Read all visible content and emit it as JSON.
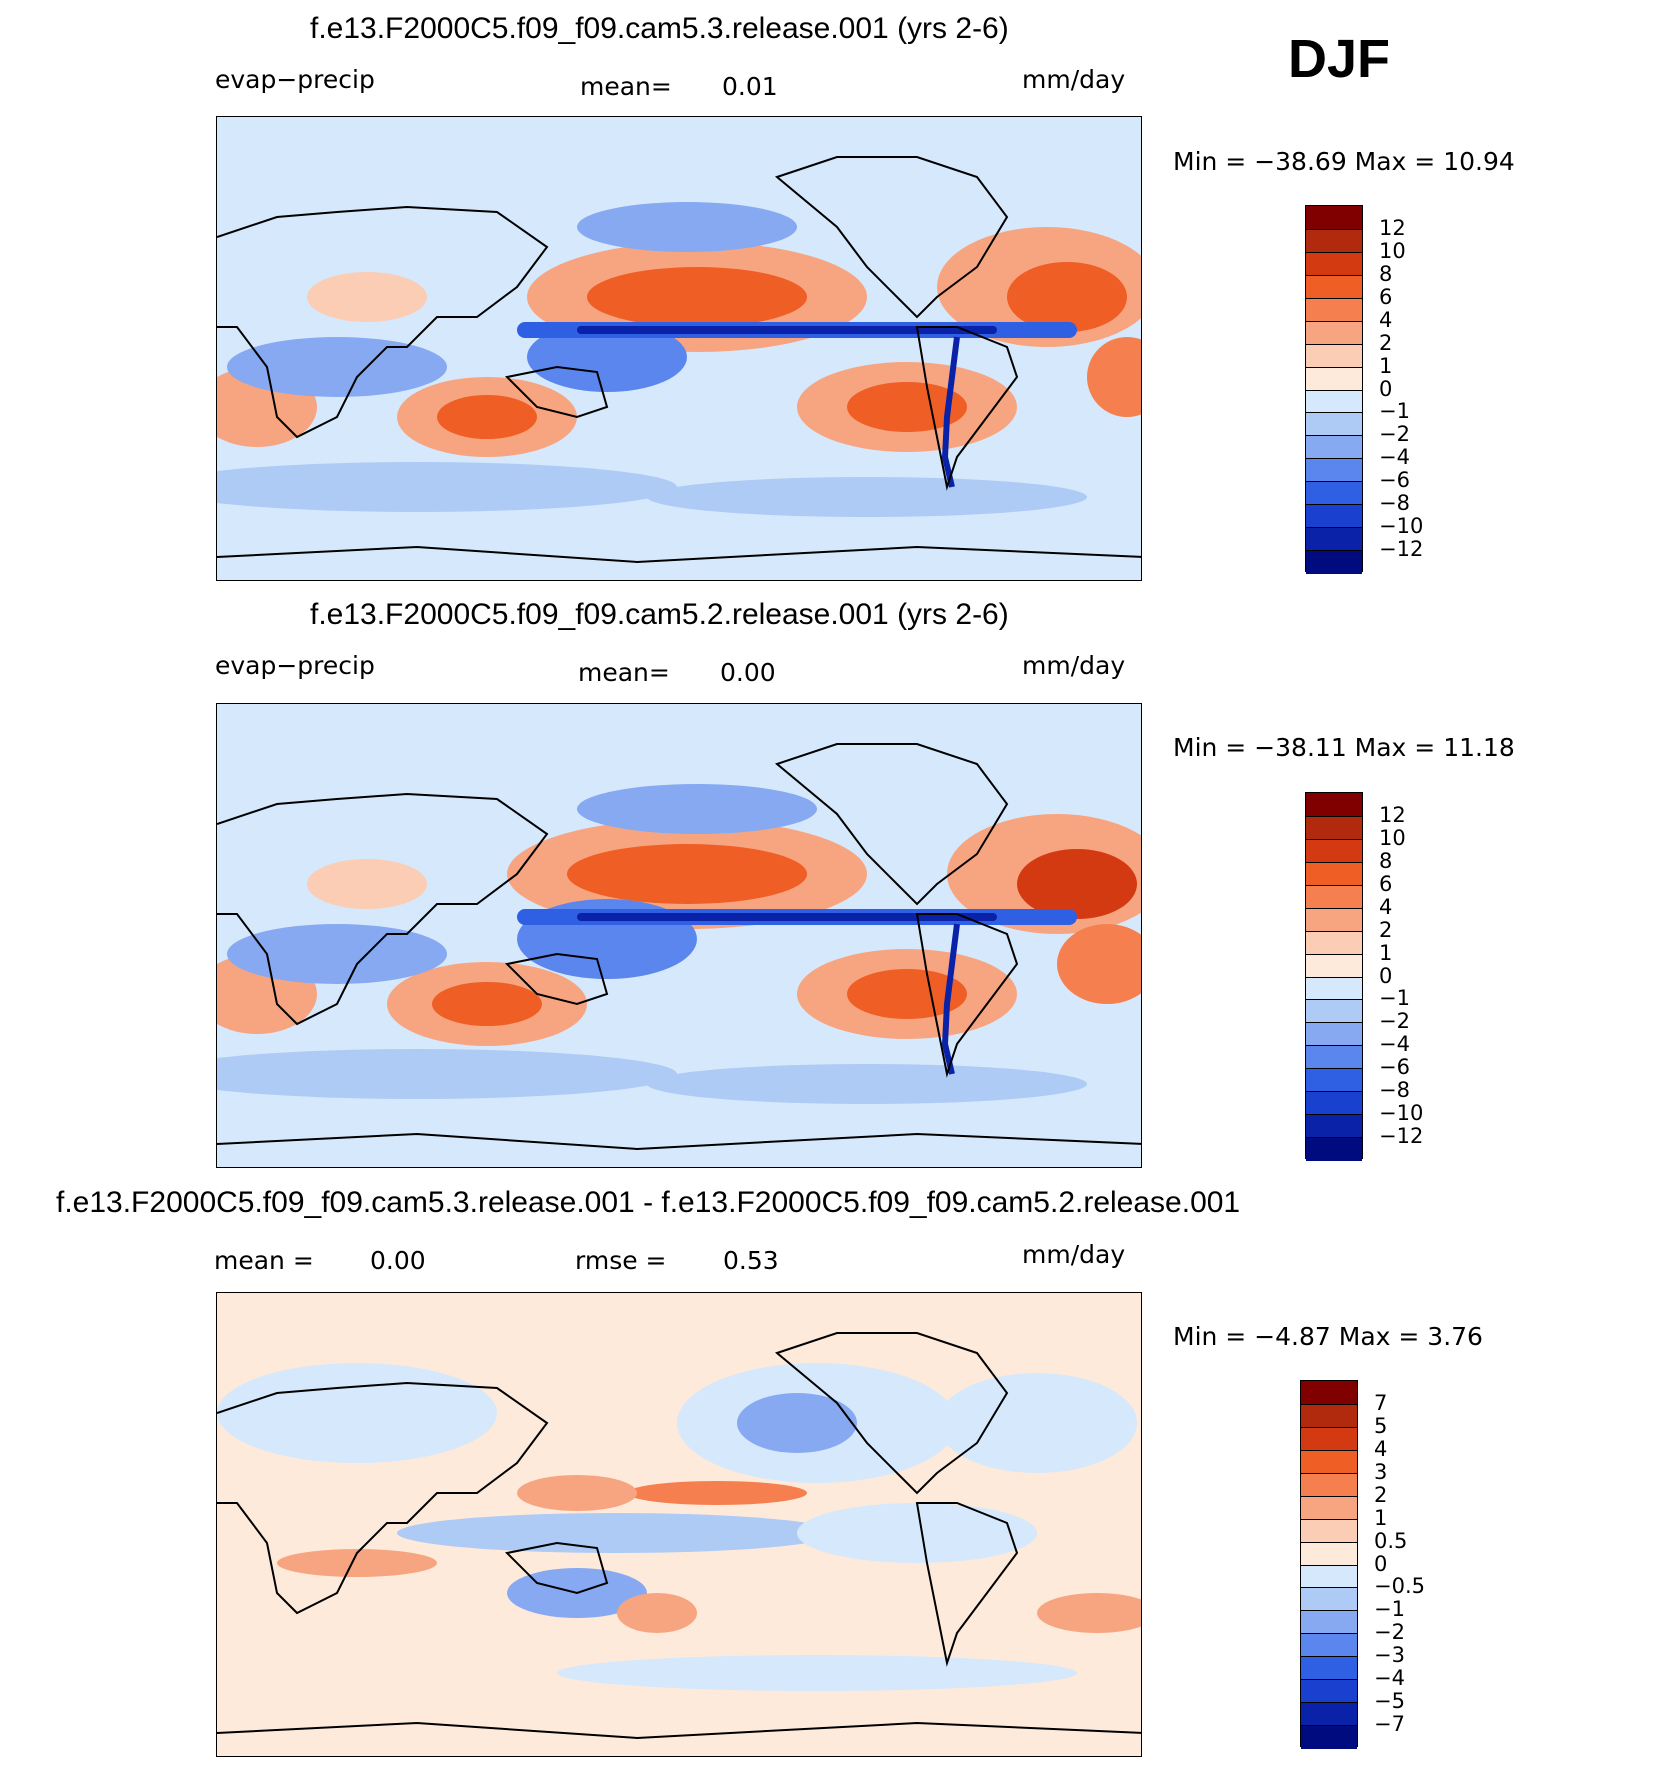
{
  "season": "DJF",
  "panels": [
    {
      "title": "f.e13.F2000C5.f09_f09.cam5.3.release.001 (yrs 2-6)",
      "left_label": "evap−precip",
      "mean_label": "mean=",
      "mean_value": "0.01",
      "units": "mm/day",
      "min_label": "Min  =  −38.69  Max  =    10.94",
      "levels": [
        "12",
        "10",
        "8",
        "6",
        "4",
        "2",
        "1",
        "0",
        "−1",
        "−2",
        "−4",
        "−6",
        "−8",
        "−10",
        "−12"
      ]
    },
    {
      "title": "f.e13.F2000C5.f09_f09.cam5.2.release.001 (yrs 2-6)",
      "left_label": "evap−precip",
      "mean_label": "mean=",
      "mean_value": "0.00",
      "units": "mm/day",
      "min_label": "Min  =  −38.11  Max  =    11.18",
      "levels": [
        "12",
        "10",
        "8",
        "6",
        "4",
        "2",
        "1",
        "0",
        "−1",
        "−2",
        "−4",
        "−6",
        "−8",
        "−10",
        "−12"
      ]
    },
    {
      "title": "f.e13.F2000C5.f09_f09.cam5.3.release.001 - f.e13.F2000C5.f09_f09.cam5.2.release.001",
      "left_label": "mean  =",
      "mean_label": "",
      "mean_value": "0.00",
      "rmse_label": "rmse  =",
      "rmse_value": "0.53",
      "units": "mm/day",
      "min_label": "Min  =    −4.87  Max  =     3.76",
      "levels": [
        "7",
        "5",
        "4",
        "3",
        "2",
        "1",
        "0.5",
        "0",
        "−0.5",
        "−1",
        "−2",
        "−3",
        "−4",
        "−5",
        "−7"
      ]
    }
  ],
  "colors": {
    "scale": [
      "#800000",
      "#b22a0e",
      "#d43a12",
      "#ef5e25",
      "#f57f4e",
      "#f7a580",
      "#fbcdb4",
      "#fdeadb",
      "#d6e8fb",
      "#aecbf5",
      "#86a9f2",
      "#5a86ee",
      "#2f60e4",
      "#1a40d0",
      "#0a22a8",
      "#000b80"
    ],
    "map_background": "#d6e8fb"
  }
}
